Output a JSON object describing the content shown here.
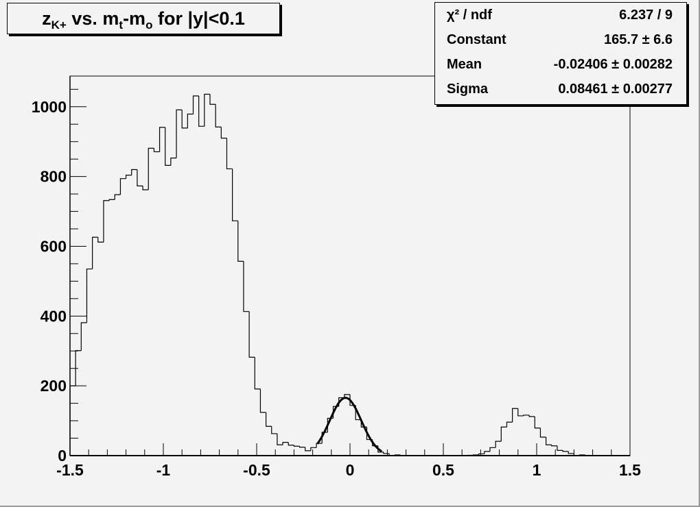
{
  "title": {
    "main": "z",
    "sub": "K+",
    "mid": " vs. m",
    "sub2": "t",
    "mid2": "-m",
    "sub3": "o",
    "tail": " for |y|<0.1"
  },
  "stats": [
    {
      "label": "χ² / ndf",
      "value": "6.237 / 9"
    },
    {
      "label": "Constant",
      "value": "165.7 ± 6.6"
    },
    {
      "label": "Mean",
      "value": "-0.02406 ± 0.00282"
    },
    {
      "label": "Sigma",
      "value": "0.08461 ± 0.00277"
    }
  ],
  "chart_data": {
    "type": "bar",
    "subtype": "histogram-step",
    "title": "zK+ vs. mt-mo for |y|<0.1",
    "xlabel": "",
    "ylabel": "",
    "xlim": [
      -1.5,
      1.5
    ],
    "ylim": [
      0,
      1088
    ],
    "bin_width": 0.03,
    "x_ticks": [
      "-1.5",
      "-1",
      "-0.5",
      "0",
      "0.5",
      "1",
      "1.5"
    ],
    "y_ticks": [
      "0",
      "200",
      "400",
      "600",
      "800",
      "1000"
    ],
    "grid": false,
    "values": [
      200,
      301,
      381,
      535,
      626,
      612,
      731,
      734,
      748,
      794,
      804,
      820,
      773,
      762,
      881,
      871,
      941,
      832,
      853,
      991,
      939,
      979,
      1031,
      944,
      1036,
      1007,
      942,
      910,
      822,
      673,
      557,
      413,
      282,
      191,
      124,
      84,
      63,
      31,
      38,
      30,
      27,
      24,
      14,
      23,
      35,
      67,
      107,
      141,
      166,
      175,
      144,
      103,
      82,
      46,
      28,
      10,
      6,
      0,
      2,
      0,
      0,
      0,
      0,
      0,
      0,
      0,
      0,
      0,
      0,
      0,
      0,
      1,
      2,
      5,
      12,
      23,
      41,
      82,
      96,
      135,
      114,
      116,
      112,
      79,
      53,
      31,
      28,
      15,
      12,
      6,
      0,
      2,
      0,
      0,
      0,
      0,
      0,
      0,
      0,
      0
    ],
    "fit": {
      "function": "gaus",
      "constant": 165.7,
      "mean": -0.02406,
      "sigma": 0.08461,
      "range": [
        -0.175,
        0.17
      ]
    },
    "colors": {
      "line": "#000000",
      "background": "#f3f3f3"
    }
  }
}
